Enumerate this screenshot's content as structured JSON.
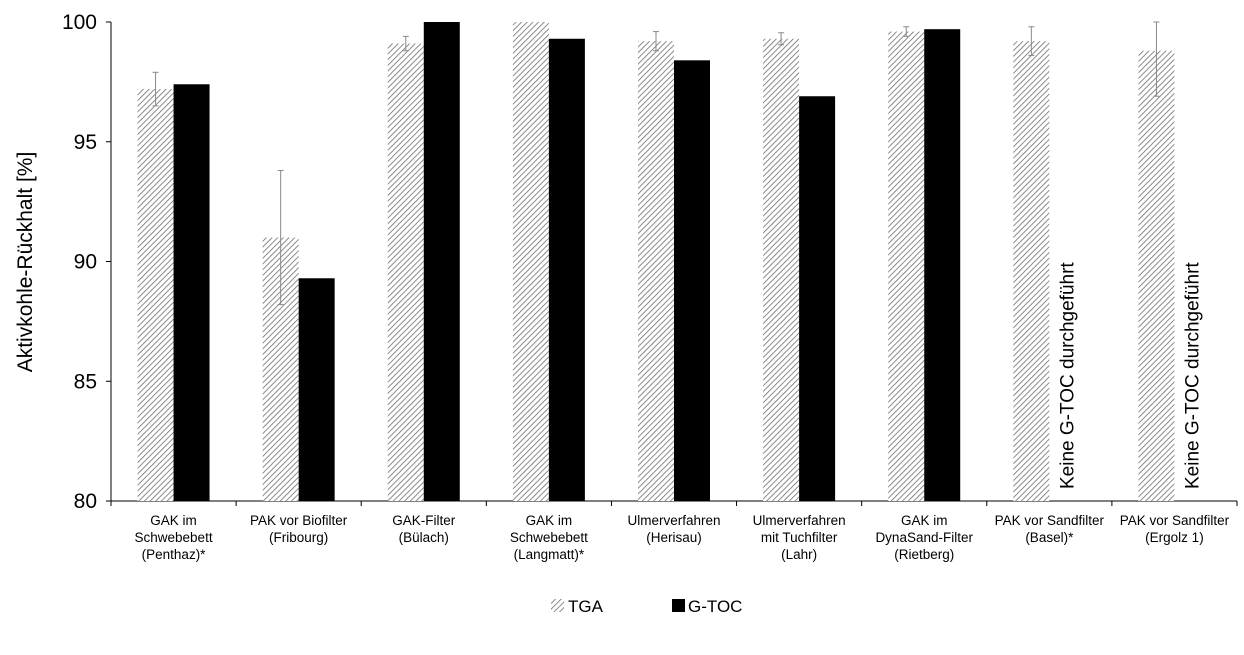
{
  "chart_data": {
    "type": "bar",
    "title": "",
    "xlabel": "",
    "ylabel": "Aktivkohle-Rückhalt [%]",
    "ylim": [
      80,
      100
    ],
    "yticks": [
      "80",
      "85",
      "90",
      "95",
      "100"
    ],
    "ytick_values": [
      80,
      85,
      90,
      95,
      100
    ],
    "grid": false,
    "legend_position": "bottom",
    "categories": [
      [
        "GAK im",
        "Schwebebett",
        "(Penthaz)*"
      ],
      [
        "PAK vor Biofilter",
        "(Fribourg)"
      ],
      [
        "GAK-Filter",
        "(Bülach)"
      ],
      [
        "GAK im",
        "Schwebebett",
        "(Langmatt)*"
      ],
      [
        "Ulmerverfahren",
        "(Herisau)"
      ],
      [
        "Ulmerverfahren",
        "mit Tuchfilter",
        "(Lahr)"
      ],
      [
        "GAK im",
        "DynaSand-Filter",
        "(Rietberg)"
      ],
      [
        "PAK vor Sandfilter",
        "(Basel)*"
      ],
      [
        "PAK vor Sandfilter",
        "(Ergolz 1)"
      ]
    ],
    "series": [
      {
        "name": "TGA",
        "pattern": "hatched",
        "color": "#555555",
        "values": [
          97.2,
          91.0,
          99.1,
          100.0,
          99.2,
          99.3,
          99.6,
          99.2,
          98.8
        ],
        "error": [
          0.7,
          2.8,
          0.3,
          0.0,
          0.4,
          0.25,
          0.2,
          0.6,
          1.9
        ]
      },
      {
        "name": "G-TOC",
        "pattern": "solid",
        "color": "#000000",
        "values": [
          97.4,
          89.3,
          100.0,
          99.3,
          98.4,
          96.9,
          99.7,
          null,
          null
        ]
      }
    ],
    "annotations": [
      {
        "category_index": 7,
        "text": "Keine G-TOC durchgeführt"
      },
      {
        "category_index": 8,
        "text": "Keine G-TOC durchgeführt"
      }
    ]
  }
}
